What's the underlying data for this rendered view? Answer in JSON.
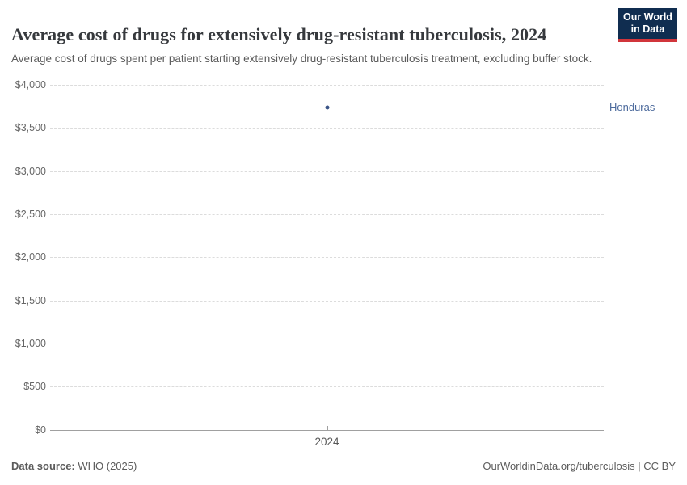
{
  "header": {
    "title": "Average cost of drugs for extensively drug-resistant tuberculosis, 2024",
    "subtitle": "Average cost of drugs spent per patient starting extensively drug-resistant tuberculosis treatment, excluding buffer stock.",
    "logo": {
      "line1": "Our World",
      "line2": "in Data"
    }
  },
  "footer": {
    "source_label": "Data source:",
    "source_value": " WHO (2025)",
    "link": "OurWorldinData.org/tuberculosis | CC BY"
  },
  "colors": {
    "logo_navy": "#102d50",
    "logo_red": "#d1353b",
    "point_blue": "#3a5487",
    "entity_label_blue": "#4c6a9c",
    "gridline": "#dcdcdc",
    "axis_line": "#a0a0a0"
  },
  "chart_data": {
    "type": "scatter",
    "title": "Average cost of drugs for extensively drug-resistant tuberculosis, 2024",
    "xlabel": "",
    "ylabel": "",
    "ylim": [
      0,
      4000
    ],
    "xlim": [
      2024,
      2024
    ],
    "grid": "horizontal-dashed",
    "legend_position": "right-entity-label",
    "yticks": [
      {
        "value": 0,
        "label": "$0"
      },
      {
        "value": 500,
        "label": "$500"
      },
      {
        "value": 1000,
        "label": "$1,000"
      },
      {
        "value": 1500,
        "label": "$1,500"
      },
      {
        "value": 2000,
        "label": "$2,000"
      },
      {
        "value": 2500,
        "label": "$2,500"
      },
      {
        "value": 3000,
        "label": "$3,000"
      },
      {
        "value": 3500,
        "label": "$3,500"
      },
      {
        "value": 4000,
        "label": "$4,000"
      }
    ],
    "xticks": [
      {
        "value": 2024,
        "label": "2024"
      }
    ],
    "series": [
      {
        "name": "Honduras",
        "points": [
          {
            "x": 2024,
            "y": 3740
          }
        ],
        "color": "#3a5487",
        "label_color": "#4c6a9c"
      }
    ]
  }
}
